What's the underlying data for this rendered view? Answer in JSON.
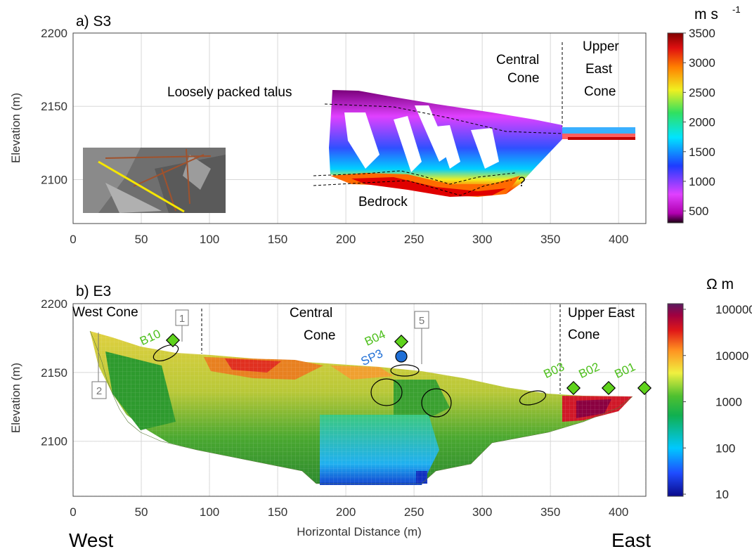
{
  "chart_data": [
    {
      "type": "heatmap",
      "panel": "a) S3",
      "ylabel": "Elevation (m)",
      "xlim": [
        0,
        420
      ],
      "ylim": [
        2070,
        2200
      ],
      "xticks": [
        0,
        50,
        100,
        150,
        200,
        250,
        300,
        350,
        400
      ],
      "yticks": [
        2100,
        2150,
        2200
      ],
      "colorbar": {
        "unit_base": "m s",
        "unit_exp": "-1",
        "ticks": [
          500,
          1000,
          1500,
          2000,
          2500,
          3000,
          3500
        ],
        "range": [
          300,
          3500
        ]
      },
      "annotations": {
        "talus": "Loosely packed talus",
        "bedrock": "Bedrock",
        "question": "?",
        "central_1": "Central",
        "central_2": "Cone",
        "upper_1": "Upper",
        "upper_2": "East",
        "upper_3": "Cone"
      },
      "inset": {
        "description": "aerial photo with survey line",
        "line_color": "#f5e600"
      },
      "boundaries": {
        "central_upper_x": 354
      }
    },
    {
      "type": "heatmap",
      "panel": "b) E3",
      "ylabel": "Elevation (m)",
      "xlabel": "Horizontal Distance (m)",
      "xlim": [
        0,
        420
      ],
      "ylim": [
        2060,
        2200
      ],
      "xticks": [
        0,
        50,
        100,
        150,
        200,
        250,
        300,
        350,
        400
      ],
      "yticks": [
        2100,
        2150,
        2200
      ],
      "colorbar": {
        "unit": "Ω m",
        "ticks": [
          10,
          100,
          1000,
          10000,
          100000
        ],
        "scale": "log"
      },
      "regions": {
        "west": "West Cone",
        "central_1": "Central",
        "central_2": "Cone",
        "upper_1": "Upper East",
        "upper_2": "Cone"
      },
      "boreholes": [
        {
          "label": "B10",
          "x": 73,
          "elev": 2170
        },
        {
          "label": "B04",
          "x": 237,
          "elev": 2170
        },
        {
          "label": "B03",
          "x": 362,
          "elev": 2137
        },
        {
          "label": "B02",
          "x": 387,
          "elev": 2137
        },
        {
          "label": "B01",
          "x": 413,
          "elev": 2137
        }
      ],
      "sp_point": {
        "label": "SP3",
        "x": 237,
        "elev": 2160
      },
      "boxes": [
        "1",
        "2",
        "5"
      ],
      "west_label": "West",
      "east_label": "East",
      "colors": {
        "borehole": "#5fd31c",
        "sp": "#1f6fd6"
      }
    }
  ]
}
